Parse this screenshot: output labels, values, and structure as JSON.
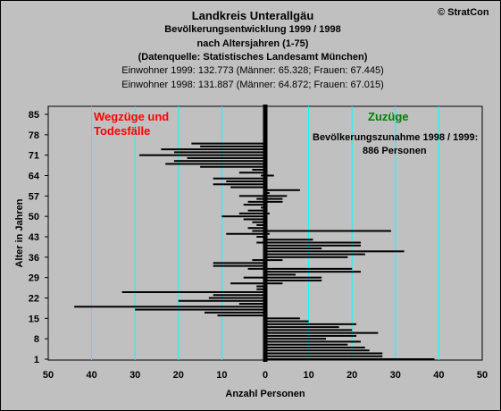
{
  "header": {
    "title": "Landkreis Unterallgäu",
    "subtitle1": "Bevölkerungsentwicklung 1999 / 1998",
    "subtitle2": "nach Altersjahren (1-75)",
    "source": "(Datenquelle: Statistisches Landesamt München)",
    "pop1999": "Einwohner 1999: 132.773  (Männer: 65.328; Frauen: 67.445)",
    "pop1998": "Einwohner 1998: 131.887  (Männer: 64.872; Frauen: 67.015)",
    "copyright": "© StratCon"
  },
  "annotations": {
    "left_line1": "Wegzüge und",
    "left_line2": "Todesfälle",
    "right": "Zuzüge",
    "note_line1": "Bevölkerungszunahme 1998 / 1999:",
    "note_line2": "886 Personen"
  },
  "colors": {
    "background": "#c0c0c0",
    "bars": "#000000",
    "gridlines": "#00ffff",
    "left_annotation": "#ff0000",
    "right_annotation": "#008000"
  },
  "chart_data": {
    "type": "bar",
    "orientation": "horizontal",
    "xlabel": "Anzahl Personen",
    "ylabel": "Alter in Jahren",
    "xlim": [
      -50,
      50
    ],
    "ylim": [
      1,
      85
    ],
    "x_ticks": [
      -50,
      -40,
      -30,
      -20,
      -10,
      0,
      10,
      20,
      30,
      40,
      50
    ],
    "x_tick_labels": [
      "50",
      "40",
      "30",
      "20",
      "10",
      "0",
      "10",
      "20",
      "30",
      "40",
      "50"
    ],
    "y_ticks": [
      1,
      8,
      15,
      22,
      29,
      36,
      43,
      50,
      57,
      64,
      71,
      78,
      85
    ],
    "gridlines": "vertical",
    "ages": [
      1,
      2,
      3,
      4,
      5,
      6,
      7,
      8,
      9,
      10,
      11,
      12,
      13,
      14,
      15,
      16,
      17,
      18,
      19,
      20,
      21,
      22,
      23,
      24,
      25,
      26,
      27,
      28,
      29,
      30,
      31,
      32,
      33,
      34,
      35,
      36,
      37,
      38,
      39,
      40,
      41,
      42,
      43,
      44,
      45,
      46,
      47,
      48,
      49,
      50,
      51,
      52,
      53,
      54,
      55,
      56,
      57,
      58,
      59,
      60,
      61,
      62,
      63,
      64,
      65,
      66,
      67,
      68,
      69,
      70,
      71,
      72,
      73,
      74,
      75
    ],
    "series": [
      {
        "name": "Zuzüge",
        "values": [
          39,
          27,
          27,
          24,
          23,
          19,
          22,
          14,
          21,
          26,
          20,
          17,
          21,
          10,
          8,
          0,
          0,
          0,
          0,
          0,
          0,
          0,
          0,
          0,
          0,
          0,
          4,
          13,
          13,
          7,
          22,
          20,
          0,
          0,
          4,
          19,
          23,
          32,
          13,
          22,
          22,
          11,
          0,
          1,
          29,
          0,
          0,
          0,
          0,
          0,
          1,
          0,
          0,
          0,
          4,
          4,
          5,
          1,
          8,
          0,
          0,
          0,
          0,
          2,
          0,
          0,
          0,
          0,
          0,
          0,
          0,
          0,
          0,
          0,
          0
        ]
      },
      {
        "name": "Wegzüge und Todesfälle",
        "values": [
          0,
          0,
          0,
          0,
          0,
          0,
          0,
          0,
          0,
          0,
          0,
          0,
          0,
          0,
          0,
          -11,
          -14,
          -30,
          -44,
          -6,
          -20,
          -13,
          -12,
          -33,
          -2,
          -2,
          -8,
          0,
          -5,
          0,
          0,
          -4,
          -12,
          -12,
          -3,
          0,
          0,
          0,
          0,
          0,
          -2,
          0,
          -2,
          -9,
          -3,
          -4,
          -2,
          -3,
          -5,
          -10,
          -6,
          -4,
          -1,
          -5,
          -4,
          -2,
          -6,
          0,
          0,
          -8,
          -12,
          -9,
          -12,
          -1,
          -6,
          -3,
          -15,
          -23,
          -21,
          -18,
          -29,
          -21,
          -24,
          -15,
          -17
        ]
      }
    ]
  }
}
